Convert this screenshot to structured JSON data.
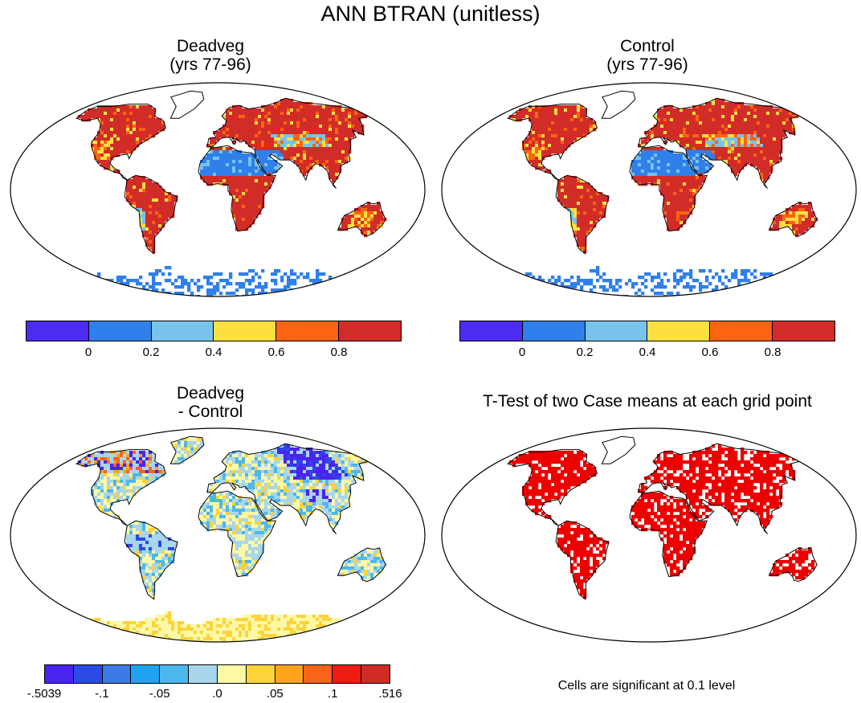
{
  "title": "ANN BTRAN (unitless)",
  "chart_data": [
    {
      "type": "heatmap",
      "title": "Deadveg\n(yrs 77-96)",
      "projection": "Robinson world map",
      "colorbar": {
        "colors": [
          "#4b2cf0",
          "#2f80ea",
          "#78c3ec",
          "#fce040",
          "#fb6410",
          "#d22c28"
        ],
        "tick_labels": [
          "0",
          "0.2",
          "0.4",
          "0.6",
          "0.8"
        ],
        "levels": [
          0,
          0.2,
          0.4,
          0.6,
          0.8
        ]
      }
    },
    {
      "type": "heatmap",
      "title": "Control\n(yrs 77-96)",
      "projection": "Robinson world map",
      "colorbar": {
        "colors": [
          "#4b2cf0",
          "#2f80ea",
          "#78c3ec",
          "#fce040",
          "#fb6410",
          "#d22c28"
        ],
        "tick_labels": [
          "0",
          "0.2",
          "0.4",
          "0.6",
          "0.8"
        ],
        "levels": [
          0,
          0.2,
          0.4,
          0.6,
          0.8
        ]
      }
    },
    {
      "type": "heatmap",
      "title": "Deadveg\n- Control",
      "projection": "Robinson world map",
      "colorbar": {
        "colors": [
          "#4a24ee",
          "#2c4ae6",
          "#3a7be6",
          "#20a4f2",
          "#4cb8ee",
          "#a8d6ec",
          "#fcf8a6",
          "#fcd43a",
          "#fca51c",
          "#f9641a",
          "#ee1c10",
          "#d02c26"
        ],
        "tick_labels": [
          "-.5039",
          "-.1",
          "-.05",
          ".0",
          ".05",
          ".1",
          ".516"
        ],
        "levels": [
          -0.5039,
          -0.1,
          -0.05,
          0.0,
          0.05,
          0.1,
          0.516
        ]
      }
    },
    {
      "type": "heatmap",
      "title": "T-Test of two Case means at each grid point",
      "projection": "Robinson world map",
      "note": "Cells are significant at 0.1 level",
      "significant_color": "#ee0000"
    }
  ]
}
